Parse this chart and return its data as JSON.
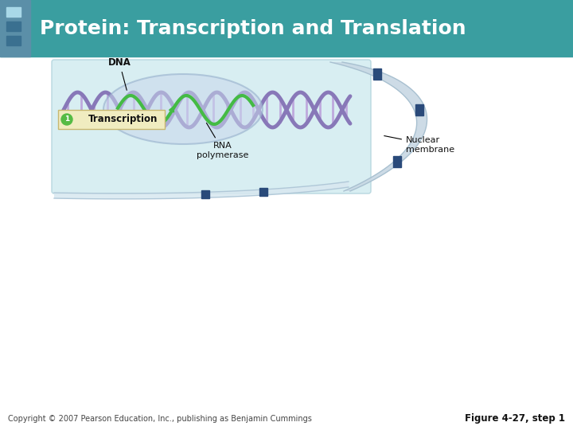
{
  "title": "Protein: Transcription and Translation",
  "header_bg": "#3a9ea0",
  "header_left_strip": "#5b8fa8",
  "squares_colors": [
    "#a8d8e8",
    "#3a7090"
  ],
  "body_bg": "#ffffff",
  "panel_bg": "#d8eef2",
  "panel_edge": "#b8d8e0",
  "copyright_text": "Copyright © 2007 Pearson Education, Inc., publishing as Benjamin Cummings",
  "figure_label": "Figure 4-27, step 1",
  "label_dna": "DNA",
  "label_transcription": "Transcription",
  "label_rna_polymerase": "RNA\npolymerase",
  "label_nuclear_membrane": "Nuclear\nmembrane",
  "step_number": "1",
  "step_circle_color": "#55bb44",
  "step_text_color": "#ffffff",
  "annotation_box_color": "#f0ecc0",
  "annotation_box_edge": "#c8b870",
  "dna_color": "#8878b8",
  "dna_bar_color": "#b898d8",
  "membrane_outer": "#c8d8e4",
  "membrane_inner": "#e0ecf4",
  "membrane_dark": "#2a4a7a",
  "green_strand": "#44bb44"
}
